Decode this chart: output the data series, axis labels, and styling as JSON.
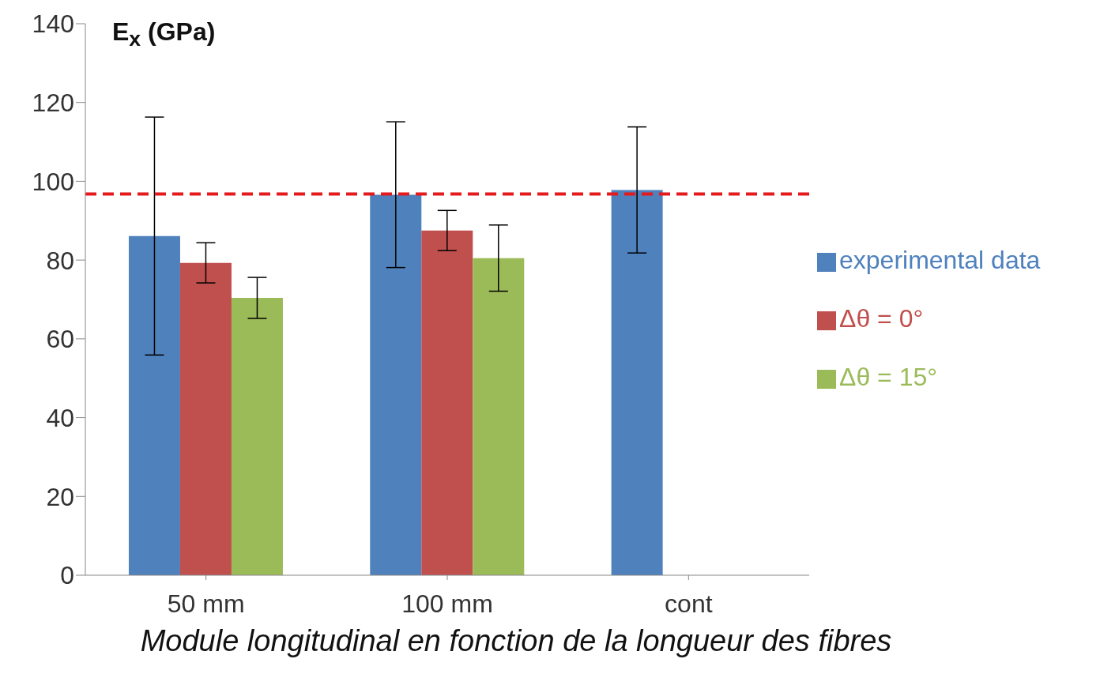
{
  "chart_data": {
    "type": "bar",
    "ylabel": "E$_{x}$ (GPa)",
    "categories": [
      "50 mm",
      "100 mm",
      "cont"
    ],
    "series": [
      {
        "name": "experimental data",
        "color": "#4f81bd",
        "values": [
          86.1,
          96.6,
          97.8
        ],
        "errors": [
          30.2,
          18.5,
          16
        ]
      },
      {
        "name": "Δθ = 0°",
        "color": "#c0504d",
        "values": [
          79.3,
          87.5,
          null
        ],
        "errors": [
          5.1,
          5.1,
          null
        ]
      },
      {
        "name": "Δθ = 15°",
        "color": "#9bbb59",
        "values": [
          70.4,
          80.5,
          null
        ],
        "errors": [
          5.2,
          8.4,
          null
        ]
      }
    ],
    "ylim": [
      0,
      140
    ],
    "yticks": [
      0,
      20,
      40,
      60,
      80,
      100,
      120,
      140
    ],
    "grid": false,
    "legend": "right",
    "ref_lines": [
      {
        "axis": "y",
        "value": 96.8,
        "color": "#e41a1c",
        "line_style": "dashed"
      }
    ],
    "annotations": [
      "Module longitudinal en fonction de la longueur des fibres"
    ]
  }
}
